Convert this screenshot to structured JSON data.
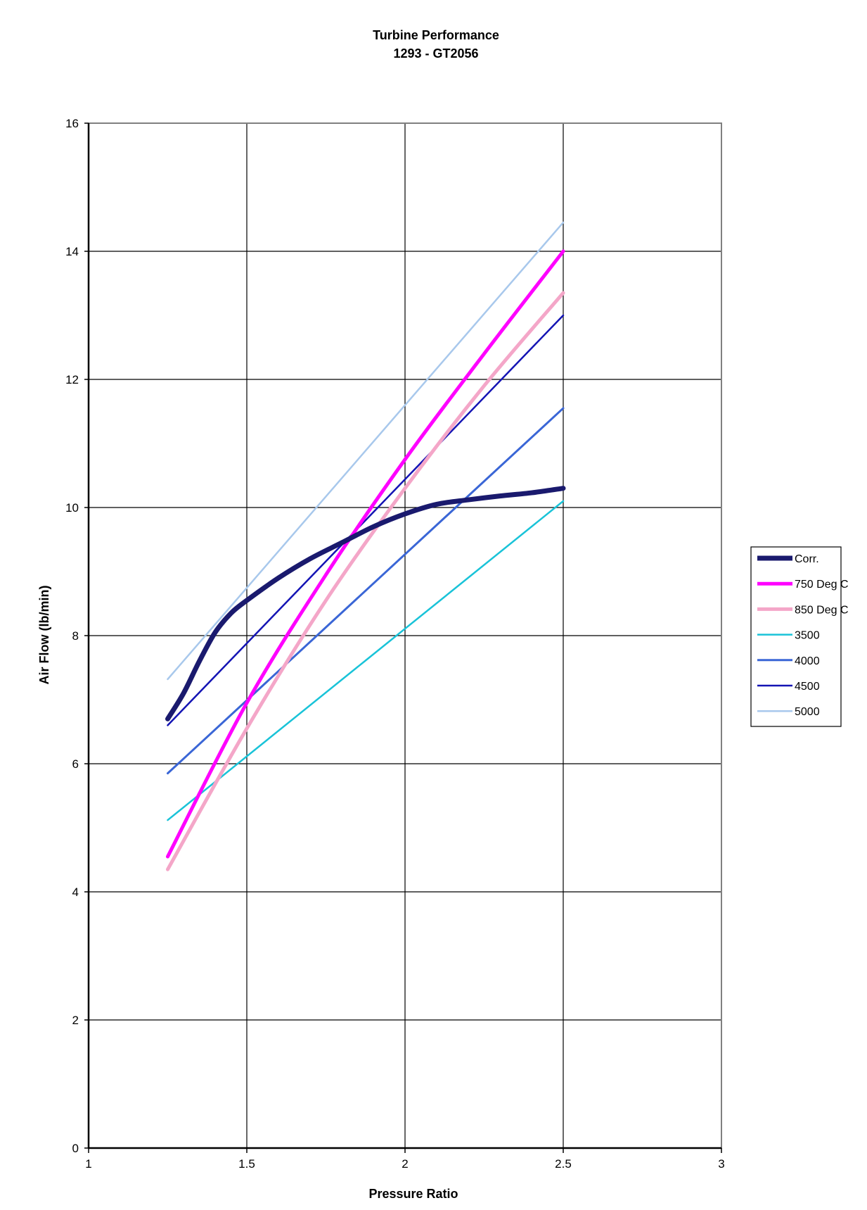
{
  "chart_data": {
    "type": "line",
    "title": "Turbine Performance",
    "subtitle": "1293 - GT2056",
    "xlabel": "Pressure Ratio",
    "ylabel": "Air Flow (lb/min)",
    "xlim": [
      1,
      3
    ],
    "ylim": [
      0,
      16
    ],
    "xticks": [
      "1",
      "1.5",
      "2",
      "2.5",
      "3"
    ],
    "yticks": [
      "0",
      "2",
      "4",
      "6",
      "8",
      "10",
      "12",
      "14",
      "16"
    ],
    "grid": true,
    "legend_position": "right",
    "series": [
      {
        "name": "Corr.",
        "color": "#1a1a6e",
        "smooth": true,
        "x": [
          1.25,
          1.3,
          1.35,
          1.4,
          1.45,
          1.5,
          1.6,
          1.7,
          1.8,
          1.9,
          2.0,
          2.1,
          2.2,
          2.3,
          2.4,
          2.5
        ],
        "y": [
          6.7,
          7.1,
          7.6,
          8.05,
          8.35,
          8.55,
          8.9,
          9.2,
          9.45,
          9.7,
          9.9,
          10.05,
          10.12,
          10.18,
          10.23,
          10.3
        ]
      },
      {
        "name": "750 Deg C",
        "color": "#ff00ff",
        "x": [
          1.25,
          1.5,
          1.75,
          2.0,
          2.25,
          2.5
        ],
        "y": [
          4.55,
          6.95,
          8.95,
          10.75,
          12.4,
          14.0
        ]
      },
      {
        "name": "850 Deg C",
        "color": "#f4a6c8",
        "x": [
          1.25,
          1.5,
          1.75,
          2.0,
          2.25,
          2.5
        ],
        "y": [
          4.35,
          6.55,
          8.55,
          10.3,
          11.9,
          13.35
        ]
      },
      {
        "name": "3500",
        "color": "#19c3d8",
        "x": [
          1.25,
          2.5
        ],
        "y": [
          5.12,
          10.1
        ]
      },
      {
        "name": "4000",
        "color": "#3a66d6",
        "x": [
          1.25,
          2.5
        ],
        "y": [
          5.85,
          11.55
        ]
      },
      {
        "name": "4500",
        "color": "#1414b4",
        "x": [
          1.25,
          2.5
        ],
        "y": [
          6.6,
          13.0
        ]
      },
      {
        "name": "5000",
        "color": "#a8c8ec",
        "x": [
          1.25,
          2.5
        ],
        "y": [
          7.32,
          14.45
        ]
      }
    ]
  }
}
